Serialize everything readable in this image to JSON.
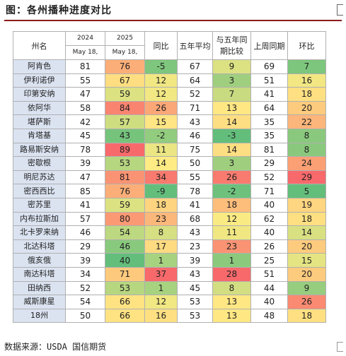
{
  "title": "图：各州播种进度对比",
  "headers": {
    "state": "州名",
    "y2024": "2024",
    "y2025": "2025",
    "date": "May 18,",
    "yoy": "同比",
    "avg5": "五年平均",
    "vs5_line1": "与五年同",
    "vs5_line2": "期比较",
    "lastweek": "上周同期",
    "wow": "环比"
  },
  "rows": [
    {
      "state": "阿肯色",
      "v2024": "81",
      "v2025": "76",
      "yoy": "-5",
      "avg5": "67",
      "vs5": "9",
      "lastweek": "69",
      "wow": "7"
    },
    {
      "state": "伊利诺伊",
      "v2024": "55",
      "v2025": "67",
      "yoy": "12",
      "avg5": "64",
      "vs5": "3",
      "lastweek": "51",
      "wow": "16"
    },
    {
      "state": "印第安纳",
      "v2024": "47",
      "v2025": "59",
      "yoy": "12",
      "avg5": "52",
      "vs5": "7",
      "lastweek": "41",
      "wow": "18"
    },
    {
      "state": "依阿华",
      "v2024": "58",
      "v2025": "84",
      "yoy": "26",
      "avg5": "71",
      "vs5": "13",
      "lastweek": "64",
      "wow": "20"
    },
    {
      "state": "堪萨斯",
      "v2024": "42",
      "v2025": "57",
      "yoy": "15",
      "avg5": "43",
      "vs5": "14",
      "lastweek": "35",
      "wow": "22"
    },
    {
      "state": "肯塔基",
      "v2024": "45",
      "v2025": "43",
      "yoy": "-2",
      "avg5": "46",
      "vs5": "-3",
      "lastweek": "35",
      "wow": "8"
    },
    {
      "state": "路易斯安纳",
      "v2024": "78",
      "v2025": "89",
      "yoy": "11",
      "avg5": "75",
      "vs5": "14",
      "lastweek": "81",
      "wow": "8"
    },
    {
      "state": "密歇根",
      "v2024": "39",
      "v2025": "53",
      "yoy": "14",
      "avg5": "50",
      "vs5": "3",
      "lastweek": "29",
      "wow": "24"
    },
    {
      "state": "明尼苏达",
      "v2024": "47",
      "v2025": "81",
      "yoy": "34",
      "avg5": "55",
      "vs5": "26",
      "lastweek": "52",
      "wow": "29"
    },
    {
      "state": "密西西比",
      "v2024": "85",
      "v2025": "76",
      "yoy": "-9",
      "avg5": "78",
      "vs5": "-2",
      "lastweek": "71",
      "wow": "5"
    },
    {
      "state": "密苏里",
      "v2024": "41",
      "v2025": "59",
      "yoy": "18",
      "avg5": "41",
      "vs5": "18",
      "lastweek": "40",
      "wow": "19"
    },
    {
      "state": "内布拉斯加",
      "v2024": "57",
      "v2025": "80",
      "yoy": "23",
      "avg5": "68",
      "vs5": "12",
      "lastweek": "62",
      "wow": "18"
    },
    {
      "state": "北卡罗来纳",
      "v2024": "46",
      "v2025": "54",
      "yoy": "8",
      "avg5": "43",
      "vs5": "11",
      "lastweek": "40",
      "wow": "14"
    },
    {
      "state": "北达科塔",
      "v2024": "29",
      "v2025": "46",
      "yoy": "17",
      "avg5": "23",
      "vs5": "23",
      "lastweek": "26",
      "wow": "20"
    },
    {
      "state": "俄亥俄",
      "v2024": "39",
      "v2025": "40",
      "yoy": "1",
      "avg5": "39",
      "vs5": "1",
      "lastweek": "25",
      "wow": "15"
    },
    {
      "state": "南达科塔",
      "v2024": "34",
      "v2025": "71",
      "yoy": "37",
      "avg5": "43",
      "vs5": "28",
      "lastweek": "51",
      "wow": "20"
    },
    {
      "state": "田纳西",
      "v2024": "52",
      "v2025": "53",
      "yoy": "1",
      "avg5": "45",
      "vs5": "8",
      "lastweek": "44",
      "wow": "9"
    },
    {
      "state": "威斯康星",
      "v2024": "54",
      "v2025": "66",
      "yoy": "12",
      "avg5": "53",
      "vs5": "13",
      "lastweek": "40",
      "wow": "26"
    },
    {
      "state": "18州",
      "v2024": "50",
      "v2025": "66",
      "yoy": "16",
      "avg5": "53",
      "vs5": "13",
      "lastweek": "48",
      "wow": "18"
    }
  ],
  "colors": {
    "region_fill": "#dbe3f1",
    "header_fill": "#ffffff",
    "scale_low": "#63be7b",
    "scale_mid": "#ffeb84",
    "scale_high": "#f8696b"
  },
  "footer": "数据来源：USDA 国信期货"
}
